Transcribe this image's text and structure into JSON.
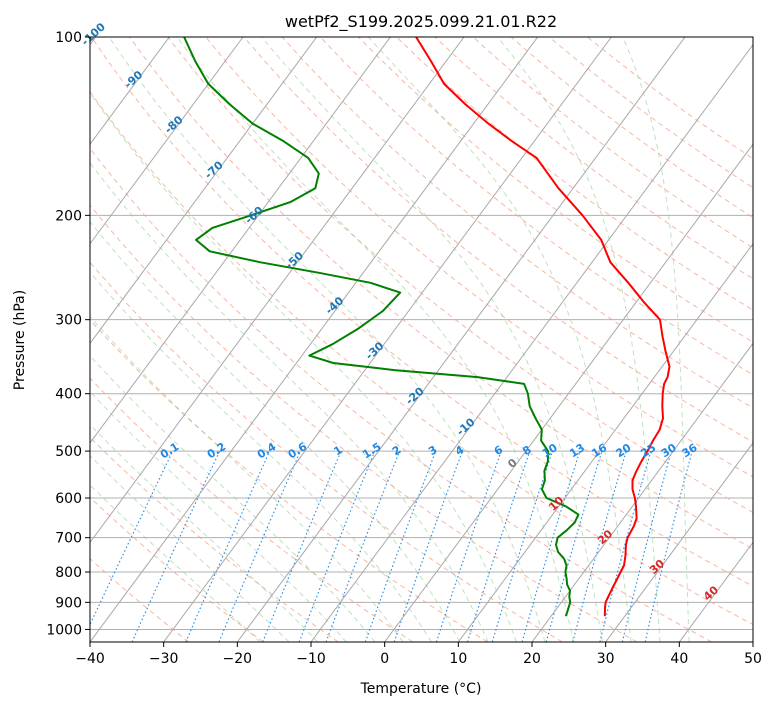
{
  "chart_data": {
    "type": "skew-t",
    "title": "wetPf2_S199.2025.099.21.01.R22",
    "xlabel": "Temperature (°C)",
    "ylabel": "Pressure (hPa)",
    "xlim": [
      -40,
      50
    ],
    "ylim": [
      1050,
      100
    ],
    "y_scale": "log",
    "grid": true,
    "x_ticks": [
      -40,
      -30,
      -20,
      -10,
      0,
      10,
      20,
      30,
      40,
      50
    ],
    "x_tick_labels": [
      "−40",
      "−30",
      "−20",
      "−10",
      "0",
      "10",
      "20",
      "30",
      "40",
      "50"
    ],
    "y_ticks": [
      100,
      200,
      300,
      400,
      500,
      600,
      700,
      800,
      900,
      1000
    ],
    "y_tick_labels": [
      "100",
      "200",
      "300",
      "400",
      "500",
      "600",
      "700",
      "800",
      "900",
      "1000"
    ],
    "isotherm_labels": [
      {
        "t": -100,
        "text": "-100"
      },
      {
        "t": -90,
        "text": "-90"
      },
      {
        "t": -80,
        "text": "-80"
      },
      {
        "t": -70,
        "text": "-70"
      },
      {
        "t": -60,
        "text": "-60"
      },
      {
        "t": -50,
        "text": "-50"
      },
      {
        "t": -40,
        "text": "-40"
      },
      {
        "t": -30,
        "text": "-30"
      },
      {
        "t": -20,
        "text": "-20"
      },
      {
        "t": -10,
        "text": "-10"
      },
      {
        "t": 0,
        "text": "0"
      },
      {
        "t": 10,
        "text": "10"
      },
      {
        "t": 20,
        "text": "20"
      },
      {
        "t": 30,
        "text": "30"
      },
      {
        "t": 40,
        "text": "40"
      }
    ],
    "mixing_ratio_labels": [
      "0.1",
      "0.2",
      "0.4",
      "0.6",
      "1",
      "1.5",
      "2",
      "3",
      "4",
      "6",
      "8",
      "10",
      "13",
      "16",
      "20",
      "25",
      "30",
      "36"
    ],
    "series": [
      {
        "kind": "temperature",
        "color": "#ff0000",
        "points": [
          [
            950,
            27.3
          ],
          [
            920,
            26.5
          ],
          [
            900,
            26.0
          ],
          [
            870,
            25.7
          ],
          [
            850,
            25.5
          ],
          [
            820,
            25.2
          ],
          [
            800,
            25.0
          ],
          [
            780,
            24.8
          ],
          [
            750,
            24.0
          ],
          [
            720,
            23.0
          ],
          [
            700,
            22.5
          ],
          [
            670,
            22.2
          ],
          [
            650,
            21.8
          ],
          [
            620,
            20.5
          ],
          [
            600,
            19.5
          ],
          [
            580,
            18.3
          ],
          [
            560,
            17.4
          ],
          [
            540,
            17.0
          ],
          [
            520,
            16.7
          ],
          [
            500,
            16.5
          ],
          [
            480,
            16.2
          ],
          [
            460,
            16.0
          ],
          [
            440,
            15.3
          ],
          [
            420,
            14.0
          ],
          [
            400,
            12.8
          ],
          [
            385,
            12.0
          ],
          [
            375,
            11.8
          ],
          [
            360,
            11.0
          ],
          [
            340,
            9.0
          ],
          [
            320,
            7.0
          ],
          [
            300,
            5.0
          ],
          [
            280,
            1.0
          ],
          [
            260,
            -3.0
          ],
          [
            240,
            -7.5
          ],
          [
            220,
            -11.0
          ],
          [
            200,
            -16.0
          ],
          [
            180,
            -22.0
          ],
          [
            160,
            -28.0
          ],
          [
            150,
            -33.0
          ],
          [
            140,
            -38.0
          ],
          [
            130,
            -43.0
          ],
          [
            120,
            -48.0
          ],
          [
            110,
            -52.0
          ],
          [
            100,
            -56.5
          ]
        ]
      },
      {
        "kind": "dewpoint",
        "color": "#008000",
        "points": [
          [
            950,
            22.0
          ],
          [
            930,
            21.7
          ],
          [
            900,
            21.2
          ],
          [
            880,
            20.5
          ],
          [
            860,
            20.0
          ],
          [
            840,
            19.0
          ],
          [
            820,
            18.3
          ],
          [
            800,
            17.5
          ],
          [
            780,
            17.0
          ],
          [
            760,
            16.0
          ],
          [
            740,
            14.5
          ],
          [
            720,
            13.5
          ],
          [
            700,
            13.0
          ],
          [
            680,
            13.5
          ],
          [
            660,
            13.8
          ],
          [
            640,
            13.5
          ],
          [
            620,
            11.0
          ],
          [
            600,
            7.5
          ],
          [
            580,
            6.0
          ],
          [
            560,
            5.5
          ],
          [
            540,
            4.5
          ],
          [
            520,
            4.0
          ],
          [
            500,
            3.0
          ],
          [
            480,
            1.0
          ],
          [
            460,
            0.0
          ],
          [
            440,
            -2.0
          ],
          [
            420,
            -4.0
          ],
          [
            400,
            -5.5
          ],
          [
            385,
            -7.0
          ],
          [
            375,
            -14.0
          ],
          [
            365,
            -26.0
          ],
          [
            355,
            -35.0
          ],
          [
            345,
            -39.0
          ],
          [
            330,
            -37.0
          ],
          [
            310,
            -35.0
          ],
          [
            290,
            -33.5
          ],
          [
            270,
            -33.0
          ],
          [
            260,
            -38.0
          ],
          [
            250,
            -46.0
          ],
          [
            240,
            -55.0
          ],
          [
            230,
            -63.0
          ],
          [
            220,
            -66.0
          ],
          [
            210,
            -65.0
          ],
          [
            200,
            -61.0
          ],
          [
            190,
            -57.0
          ],
          [
            180,
            -55.0
          ],
          [
            170,
            -56.0
          ],
          [
            160,
            -59.0
          ],
          [
            150,
            -64.0
          ],
          [
            140,
            -70.0
          ],
          [
            130,
            -75.0
          ],
          [
            120,
            -80.0
          ],
          [
            110,
            -84.0
          ],
          [
            100,
            -88.0
          ]
        ]
      }
    ]
  }
}
